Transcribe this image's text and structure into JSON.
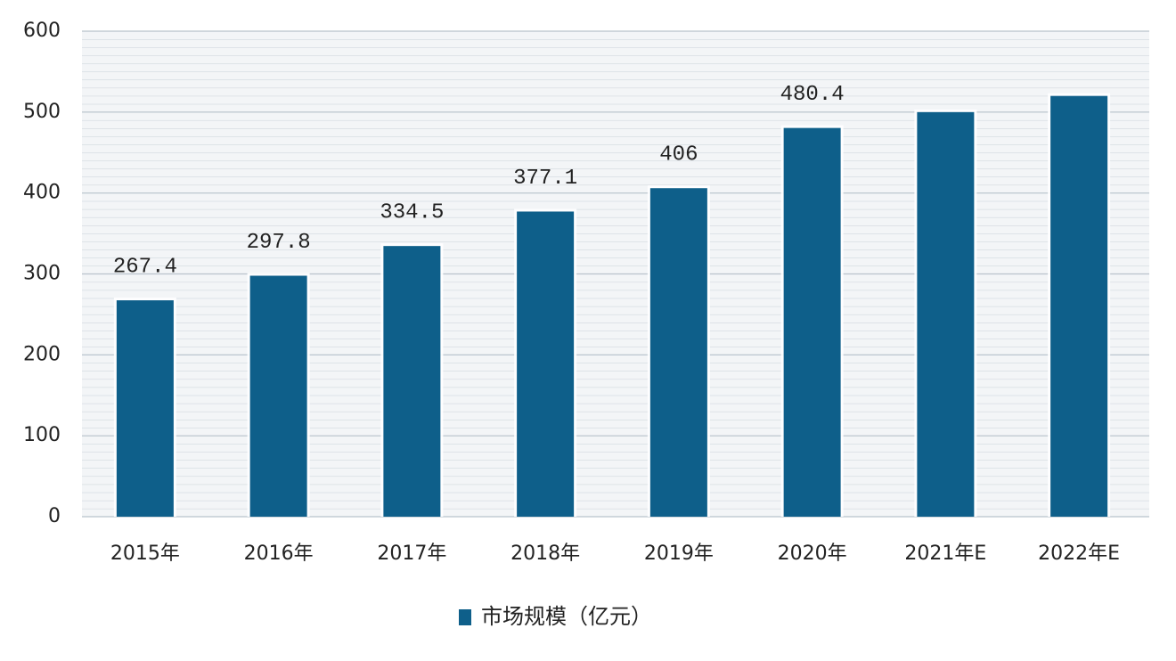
{
  "chart_data": {
    "type": "bar",
    "categories": [
      "2015年",
      "2016年",
      "2017年",
      "2018年",
      "2019年",
      "2020年",
      "2021年E",
      "2022年E"
    ],
    "series": [
      {
        "name": "市场规模（亿元）",
        "color": "#0e5f8a",
        "values": [
          267.4,
          297.8,
          334.5,
          377.1,
          406,
          480.4,
          500,
          520
        ],
        "value_labels": [
          "267.4",
          "297.8",
          "334.5",
          "377.1",
          "406",
          "480.4",
          null,
          null
        ]
      }
    ],
    "ylim": [
      0,
      600
    ],
    "yticks": [
      0,
      100,
      200,
      300,
      400,
      500,
      600
    ],
    "grid": true
  }
}
